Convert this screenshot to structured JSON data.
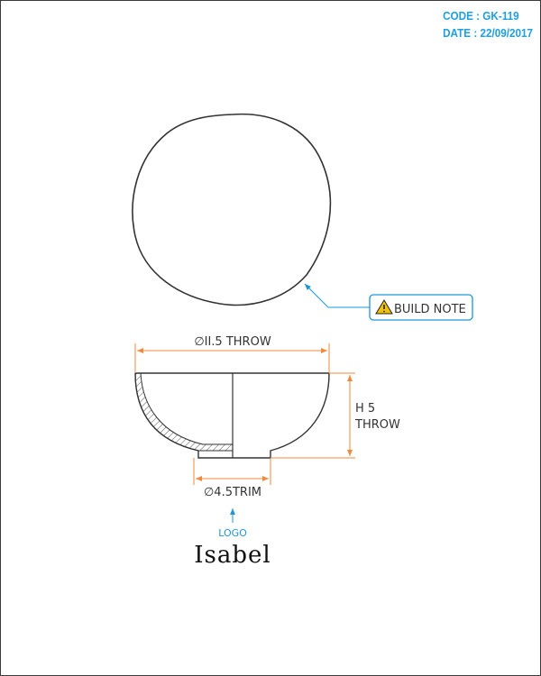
{
  "header": {
    "code": "CODE : GK-119",
    "date": "DATE : 22/09/2017"
  },
  "callout": {
    "label": "BUILD NOTE",
    "icon": "warning-icon"
  },
  "dimensions": {
    "diameter_top": "∅II.5 THROW",
    "height_line1": "H 5",
    "height_line2": "THROW",
    "diameter_base": "∅4.5TRIM"
  },
  "logo_label": "LOGO",
  "product_name": "Isabel",
  "colors": {
    "accent_blue": "#1e96d6",
    "dimension_orange": "#f08a3c",
    "outline": "#333333"
  }
}
